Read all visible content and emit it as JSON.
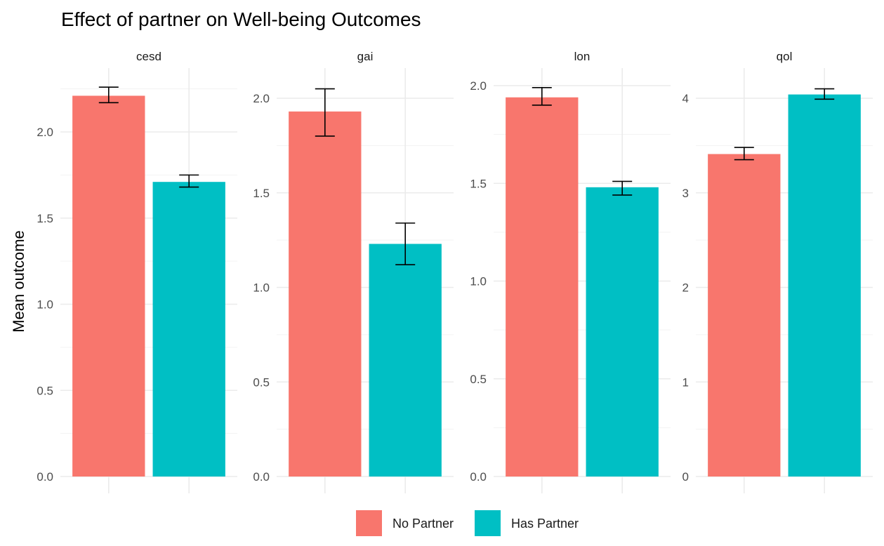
{
  "chart_data": {
    "type": "bar",
    "title": "Effect of partner on Well-being Outcomes",
    "ylabel": "Mean outcome",
    "xlabel": "",
    "legend": {
      "position": "bottom",
      "entries": [
        {
          "name": "No Partner",
          "color": "#F8766D"
        },
        {
          "name": "Has Partner",
          "color": "#00BFC4"
        }
      ]
    },
    "grid": true,
    "facets": [
      {
        "label": "cesd",
        "ylim": [
          0,
          2.25
        ],
        "yticks": [
          0,
          0.5,
          1,
          1.5,
          2
        ],
        "yticklabels": [
          "0.0",
          "0.5",
          "1.0",
          "1.5",
          "2.0"
        ],
        "bars": [
          {
            "group": "No Partner",
            "value": 2.21,
            "ci": [
              2.17,
              2.26
            ]
          },
          {
            "group": "Has Partner",
            "value": 1.71,
            "ci": [
              1.68,
              1.75
            ]
          }
        ]
      },
      {
        "label": "gai",
        "ylim": [
          0,
          2.0
        ],
        "yticks": [
          0,
          0.5,
          1,
          1.5,
          2
        ],
        "yticklabels": [
          "0.0",
          "0.5",
          "1.0",
          "1.5",
          "2.0"
        ],
        "bars": [
          {
            "group": "No Partner",
            "value": 1.93,
            "ci": [
              1.8,
              2.05
            ]
          },
          {
            "group": "Has Partner",
            "value": 1.23,
            "ci": [
              1.12,
              1.34
            ]
          }
        ]
      },
      {
        "label": "lon",
        "ylim": [
          0,
          2.0
        ],
        "yticks": [
          0,
          0.5,
          1,
          1.5,
          2
        ],
        "yticklabels": [
          "0.0",
          "0.5",
          "1.0",
          "1.5",
          "2.0"
        ],
        "bars": [
          {
            "group": "No Partner",
            "value": 1.94,
            "ci": [
              1.9,
              1.99
            ]
          },
          {
            "group": "Has Partner",
            "value": 1.48,
            "ci": [
              1.44,
              1.51
            ]
          }
        ]
      },
      {
        "label": "qol",
        "ylim": [
          0,
          4.0
        ],
        "yticks": [
          0,
          1,
          2,
          3,
          4
        ],
        "yticklabels": [
          "0",
          "1",
          "2",
          "3",
          "4"
        ],
        "bars": [
          {
            "group": "No Partner",
            "value": 3.41,
            "ci": [
              3.35,
              3.48
            ]
          },
          {
            "group": "Has Partner",
            "value": 4.04,
            "ci": [
              3.99,
              4.1
            ]
          }
        ]
      }
    ]
  }
}
